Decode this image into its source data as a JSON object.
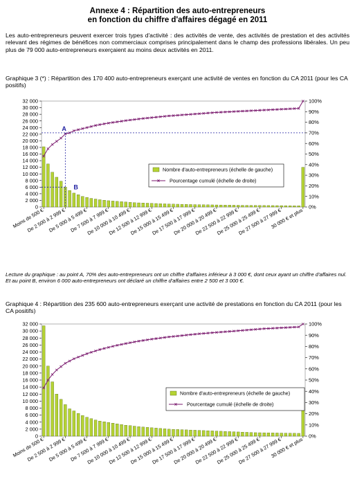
{
  "header": {
    "title_line1": "Annexe 4 : Répartition des auto-entrepreneurs",
    "title_line2": "en fonction du chiffre d'affaires dégagé en 2011"
  },
  "intro": "Les auto-entrepreneurs peuvent exercer trois types d'activité : des activités de vente, des activités de prestation et des activités relevant des régimes de bénéfices non commerciaux comprises principalement dans le champ des professions libérales. Un peu plus de 79 000 auto-entrepreneurs exerçaient au moins deux activités en 2011.",
  "graph3": {
    "title": "Graphique 3 (*) : Répartition des 170 400 auto-entrepreneurs exerçant une activité de ventes en fonction du CA 2011 (pour les CA positifs)",
    "point_a": "A",
    "point_b": "B"
  },
  "note": "Lecture du graphique : au point A, 70% des auto-entrepreneurs ont un chiffre d'affaires inférieur à 3 000 €, dont ceux ayant un chiffre d'affaires nul. Et au point B, environ 6 000 auto-entrepreneurs ont déclaré un chiffre d'affaires entre 2 500 et 3 000 €.",
  "graph4": {
    "title": "Graphique 4 : Répartition des 235 600 auto-entrepreneurs exerçant une activité de prestations en fonction du CA 2011 (pour les CA positifs)"
  },
  "chart_data": [
    {
      "type": "bar",
      "title": "Graphique 3 (*) : Répartition des 170 400 auto-entrepreneurs exerçant une activité de ventes en fonction du CA 2011 (pour les CA positifs)",
      "bar_color": "#b5d334",
      "line_color": "#7a1a6e",
      "ylim": [
        0,
        32000
      ],
      "y2lim": [
        0,
        100
      ],
      "yticks": [
        "0",
        "2 000",
        "4 000",
        "6 000",
        "8 000",
        "10 000",
        "12 000",
        "14 000",
        "16 000",
        "18 000",
        "20 000",
        "22 000",
        "24 000",
        "26 000",
        "28 000",
        "30 000",
        "32 000"
      ],
      "y2ticks": [
        "0%",
        "10%",
        "20%",
        "30%",
        "40%",
        "50%",
        "60%",
        "70%",
        "80%",
        "90%",
        "100%"
      ],
      "xticks": [
        "Moins de 500 €",
        "De 2 500 à 2 999 €",
        "De 5 000 à 5 499 €",
        "De 7 500 à 7 999 €",
        "De 10 000 à 10 499 €",
        "De 12 500 à 12 999 €",
        "De 15 000 à 15 499 €",
        "De 17 500 à 17 999 €",
        "De 20 000 à 20 499 €",
        "De 22 500 à 22 999 €",
        "De 25 000 à 25 499 €",
        "De 27 500 à 27 999 €",
        "30 000 € et plus"
      ],
      "legend": [
        "Nombre d'auto-entrepreneurs (échelle de gauche)",
        "Pourcentage cumulé (échelle de droite)"
      ],
      "legend_position": "right",
      "series": [
        {
          "name": "Nombre d'auto-entrepreneurs (échelle de gauche)",
          "values": [
            18200,
            13000,
            10500,
            9000,
            7800,
            6000,
            5000,
            4200,
            3700,
            3200,
            2900,
            2600,
            2400,
            2200,
            2050,
            1900,
            1800,
            1700,
            1600,
            1500,
            1400,
            1300,
            1250,
            1200,
            1150,
            1100,
            1050,
            1000,
            950,
            900,
            870,
            840,
            810,
            780,
            750,
            720,
            700,
            680,
            660,
            640,
            620,
            600,
            580,
            560,
            540,
            520,
            500,
            490,
            480,
            470,
            460,
            450,
            440,
            430,
            420,
            410,
            400,
            390,
            380,
            370,
            12000
          ]
        },
        {
          "name": "Pourcentage cumulé (échelle de droite)",
          "values": [
            48,
            55,
            59,
            62,
            65,
            69,
            70,
            72,
            73,
            74,
            75,
            76,
            77,
            77.8,
            78.5,
            79.2,
            79.8,
            80.4,
            81,
            81.6,
            82.1,
            82.6,
            83.1,
            83.6,
            84,
            84.4,
            84.8,
            85.2,
            85.6,
            86,
            86.3,
            86.6,
            86.9,
            87.2,
            87.5,
            87.8,
            88.1,
            88.4,
            88.7,
            89,
            89.3,
            89.5,
            89.7,
            89.9,
            90.1,
            90.3,
            90.5,
            90.7,
            90.9,
            91.1,
            91.3,
            91.5,
            91.7,
            91.9,
            92.1,
            92.3,
            92.5,
            92.7,
            92.9,
            93.1,
            100
          ]
        }
      ]
    },
    {
      "type": "bar",
      "title": "Graphique 4 : Répartition des 235 600 auto-entrepreneurs exerçant une activité de prestations en fonction du CA 2011 (pour les CA positifs)",
      "bar_color": "#b5d334",
      "line_color": "#7a1a6e",
      "ylim": [
        0,
        32000
      ],
      "y2lim": [
        0,
        100
      ],
      "yticks": [
        "0",
        "2 000",
        "4 000",
        "6 000",
        "8 000",
        "10 000",
        "12 000",
        "14 000",
        "16 000",
        "18 000",
        "20 000",
        "22 000",
        "24 000",
        "26 000",
        "28 000",
        "30 000",
        "32 000"
      ],
      "y2ticks": [
        "0%",
        "10%",
        "20%",
        "30%",
        "40%",
        "50%",
        "60%",
        "70%",
        "80%",
        "90%",
        "100%"
      ],
      "xticks": [
        "Moins de 500 €",
        "De 2 500 à 2 999 €",
        "De 5 000 à 5 499 €",
        "De 7 500 à 7 999 €",
        "De 10 000 à 10 499 €",
        "De 12 500 à 12 999 €",
        "De 15 000 à 15 499 €",
        "De 17 500 à 17 999 €",
        "De 20 000 à 20 499 €",
        "De 22 500 à 22 999 €",
        "De 25 000 à 25 499 €",
        "De 27 500 à 27 999 €",
        "30 000 € et plus"
      ],
      "legend": [
        "Nombre d'auto-entrepreneurs (échelle de gauche)",
        "Pourcentage cumulé (échelle de droite)"
      ],
      "legend_position": "right",
      "series": [
        {
          "name": "Nombre d'auto-entrepreneurs (échelle de gauche)",
          "values": [
            31500,
            20000,
            15500,
            12000,
            10500,
            9000,
            7800,
            7200,
            6500,
            5900,
            5400,
            5000,
            4600,
            4300,
            4100,
            3900,
            3700,
            3500,
            3300,
            3100,
            3000,
            2850,
            2700,
            2600,
            2500,
            2400,
            2300,
            2200,
            2100,
            2000,
            1950,
            1900,
            1850,
            1800,
            1750,
            1700,
            1650,
            1600,
            1550,
            1500,
            1450,
            1400,
            1350,
            1300,
            1250,
            1200,
            1150,
            1100,
            1050,
            1000,
            980,
            960,
            940,
            920,
            900,
            880,
            860,
            840,
            820,
            800,
            7800
          ]
        },
        {
          "name": "Pourcentage cumulé (échelle de droite)",
          "values": [
            43,
            50,
            55,
            59,
            62,
            65,
            67,
            69,
            70.5,
            72,
            73.5,
            74.8,
            76,
            77.2,
            78.2,
            79.2,
            80.1,
            81,
            81.8,
            82.6,
            83.3,
            84,
            84.7,
            85.3,
            85.9,
            86.5,
            87,
            87.5,
            88,
            88.5,
            88.9,
            89.3,
            89.7,
            90.1,
            90.5,
            90.9,
            91.3,
            91.6,
            91.9,
            92.2,
            92.5,
            92.8,
            93.1,
            93.4,
            93.7,
            94,
            94.3,
            94.6,
            94.9,
            95.2,
            95.5,
            95.8,
            96,
            96.2,
            96.4,
            96.6,
            96.8,
            97,
            97.2,
            97.4,
            100
          ]
        }
      ]
    }
  ]
}
